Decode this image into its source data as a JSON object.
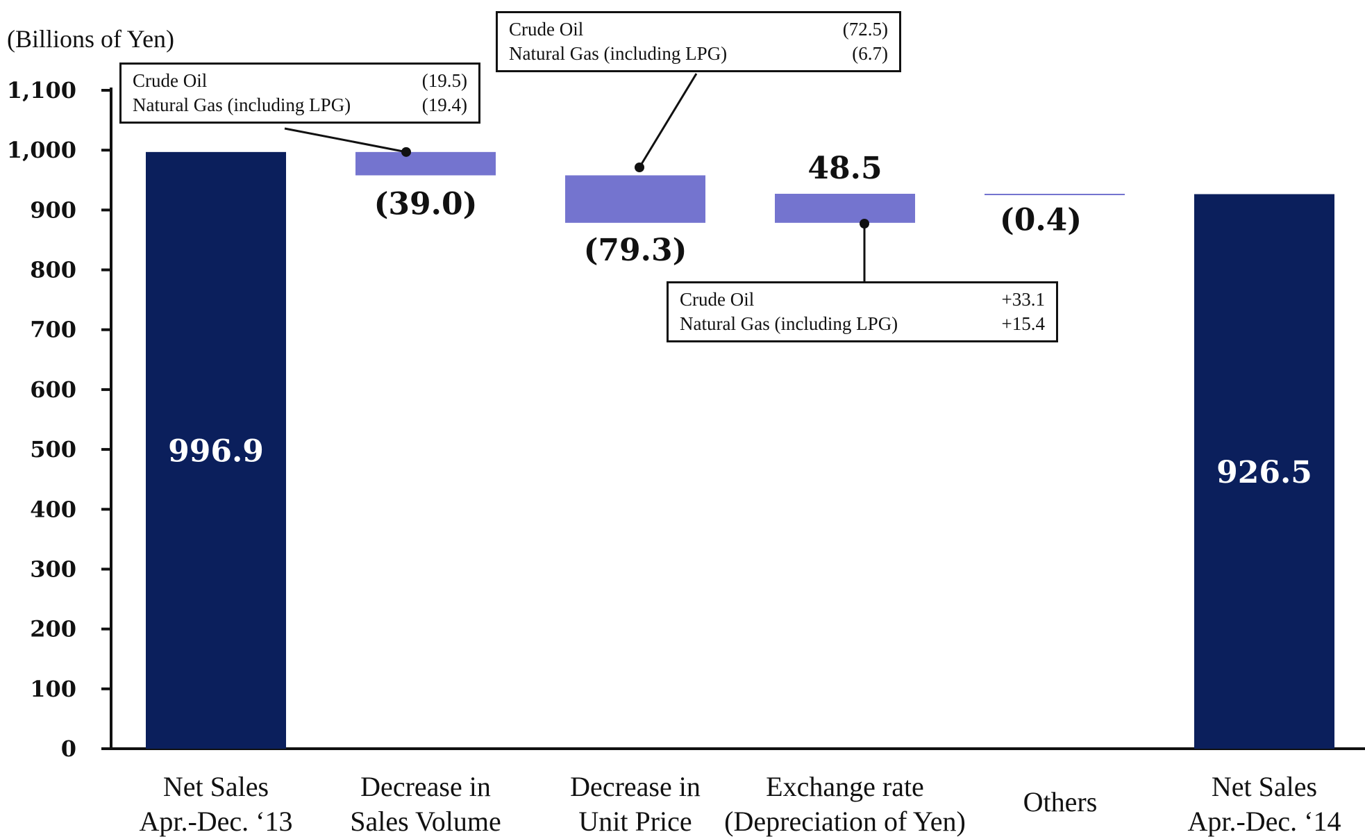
{
  "chart_data": {
    "type": "bar",
    "subtype": "waterfall",
    "unit_label": "(Billions of Yen)",
    "ylim": [
      0,
      1100
    ],
    "yticks": [
      "0",
      "100",
      "200",
      "300",
      "400",
      "500",
      "600",
      "700",
      "800",
      "900",
      "1,000",
      "1,100"
    ],
    "ytick_values": [
      0,
      100,
      200,
      300,
      400,
      500,
      600,
      700,
      800,
      900,
      1000,
      1100
    ],
    "grid": false,
    "colors": {
      "total": "#0b1f5c",
      "change": "#7474cf"
    },
    "categories": [
      {
        "label_lines": [
          "Net Sales",
          "Apr.-Dec. ‘13"
        ],
        "kind": "total",
        "value": 996.9,
        "label": "996.9"
      },
      {
        "label_lines": [
          "Decrease in",
          "Sales Volume"
        ],
        "kind": "change",
        "value": -39.0,
        "label": "(39.0)"
      },
      {
        "label_lines": [
          "Decrease in",
          "Unit Price"
        ],
        "kind": "change",
        "value": -79.3,
        "label": "(79.3)"
      },
      {
        "label_lines": [
          "Exchange rate",
          "(Depreciation of Yen)"
        ],
        "kind": "change",
        "value": 48.5,
        "label": "48.5"
      },
      {
        "label_lines": [
          "Others"
        ],
        "kind": "change",
        "value": -0.4,
        "label": "(0.4)"
      },
      {
        "label_lines": [
          "Net Sales",
          "Apr.-Dec. ‘14"
        ],
        "kind": "total",
        "value": 926.5,
        "label": "926.5"
      }
    ],
    "annotations": [
      {
        "category": "Decrease in Sales Volume",
        "rows": [
          {
            "name": "Crude Oil",
            "value": "(19.5)"
          },
          {
            "name": "Natural Gas (including LPG)",
            "value": "(19.4)"
          }
        ]
      },
      {
        "category": "Decrease in Unit Price",
        "rows": [
          {
            "name": "Crude Oil",
            "value": "(72.5)"
          },
          {
            "name": "Natural Gas (including LPG)",
            "value": "(6.7)"
          }
        ]
      },
      {
        "category": "Exchange rate (Depreciation of Yen)",
        "rows": [
          {
            "name": "Crude Oil",
            "value": "+33.1"
          },
          {
            "name": "Natural Gas (including LPG)",
            "value": "+15.4"
          }
        ]
      }
    ]
  }
}
